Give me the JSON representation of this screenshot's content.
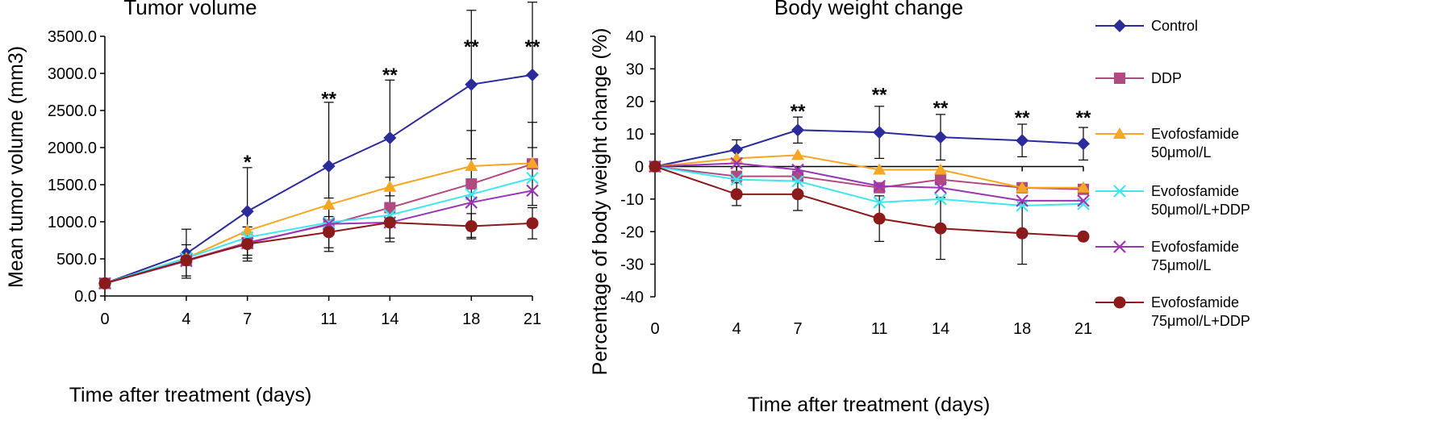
{
  "chart_data": [
    {
      "type": "line",
      "title": "Tumor volume",
      "xlabel": "Time after treatment  (days)",
      "ylabel": "Mean tumor volume (mm3)",
      "x": [
        0,
        4,
        7,
        11,
        14,
        18,
        21
      ],
      "xticks": [
        "0",
        "4",
        "7",
        "11",
        "14",
        "18",
        "21"
      ],
      "xlim": [
        0,
        21
      ],
      "ylim": [
        0,
        3500
      ],
      "yticks": [
        "0.0",
        "500.0",
        "1000.0",
        "1500.0",
        "2000.0",
        "2500.0",
        "3000.0",
        "3500.0"
      ],
      "grid": false,
      "series": [
        {
          "name": "Control",
          "values": [
            170,
            570,
            1140,
            1750,
            2130,
            2850,
            2980
          ],
          "err": [
            0,
            330,
            590,
            860,
            780,
            1000,
            980
          ]
        },
        {
          "name": "DDP",
          "values": [
            170,
            480,
            720,
            960,
            1190,
            1510,
            1780
          ],
          "err": [
            0,
            0,
            210,
            360,
            410,
            720,
            560
          ]
        },
        {
          "name": "Evofosfamide 50μmol/L",
          "values": [
            170,
            510,
            880,
            1230,
            1470,
            1750,
            1790
          ],
          "err": [
            0,
            0,
            0,
            0,
            0,
            0,
            0
          ]
        },
        {
          "name": "Evofosfamide 50μmol/L+DDP",
          "values": [
            170,
            510,
            790,
            990,
            1090,
            1370,
            1590
          ],
          "err": [
            0,
            0,
            0,
            0,
            0,
            0,
            0
          ]
        },
        {
          "name": "Evofosfamide 75μmol/L",
          "values": [
            170,
            470,
            710,
            970,
            990,
            1260,
            1420
          ],
          "err": [
            0,
            0,
            0,
            0,
            0,
            0,
            0
          ]
        },
        {
          "name": "Evofosfamide 75μmol/L+DDP",
          "values": [
            170,
            480,
            700,
            860,
            990,
            940,
            980
          ],
          "err": [
            0,
            210,
            230,
            210,
            260,
            170,
            210
          ]
        }
      ],
      "significance": [
        {
          "x": 7,
          "label": "*",
          "y": 1850
        },
        {
          "x": 11,
          "label": "**",
          "y": 2700
        },
        {
          "x": 14,
          "label": "**",
          "y": 3020
        },
        {
          "x": 18,
          "label": "**",
          "y": 3400
        },
        {
          "x": 21,
          "label": "**",
          "y": 3400
        }
      ]
    },
    {
      "type": "line",
      "title": "Body weight change",
      "xlabel": "Time after treatment  (days)",
      "ylabel": "Percentage of body weight change (%)",
      "x": [
        0,
        4,
        7,
        11,
        14,
        18,
        21
      ],
      "xticks": [
        "0",
        "4",
        "7",
        "11",
        "14",
        "18",
        "21"
      ],
      "xlim": [
        0,
        21
      ],
      "ylim": [
        -40,
        40
      ],
      "yticks": [
        "-40",
        "-30",
        "-20",
        "-10",
        "0",
        "10",
        "20",
        "30",
        "40"
      ],
      "grid": false,
      "series": [
        {
          "name": "Control",
          "values": [
            0,
            5.2,
            11.2,
            10.5,
            9.0,
            8.0,
            7.0
          ],
          "err": [
            0,
            3,
            4,
            8,
            7,
            5,
            5
          ]
        },
        {
          "name": "DDP",
          "values": [
            0,
            -3.0,
            -3.0,
            -6.5,
            -4.0,
            -6.5,
            -7.0
          ],
          "err": [
            0,
            0,
            0,
            0,
            0,
            0,
            0
          ]
        },
        {
          "name": "Evofosfamide 50μmol/L",
          "values": [
            0,
            2.5,
            3.5,
            -1.0,
            -1.0,
            -6.5,
            -6.5
          ],
          "err": [
            0,
            0,
            0,
            0,
            0,
            0,
            0
          ]
        },
        {
          "name": "Evofosfamide 50μmol/L+DDP",
          "values": [
            0,
            -4.0,
            -4.5,
            -11.0,
            -10.0,
            -12.0,
            -11.5
          ],
          "err": [
            0,
            0,
            0,
            0,
            0,
            0,
            0
          ]
        },
        {
          "name": "Evofosfamide 75μmol/L",
          "values": [
            0,
            1.0,
            -1.0,
            -6.0,
            -6.5,
            -10.5,
            -10.5
          ],
          "err": [
            0,
            0,
            0,
            0,
            0,
            0,
            0
          ]
        },
        {
          "name": "Evofosfamide 75μmol/L+DDP",
          "values": [
            0,
            -8.5,
            -8.5,
            -16.0,
            -19.0,
            -20.5,
            -21.5
          ],
          "err": [
            0,
            3.5,
            5,
            7,
            9.5,
            9.5,
            0
          ]
        }
      ],
      "significance": [
        {
          "x": 7,
          "label": "**",
          "y": 18
        },
        {
          "x": 11,
          "label": "**",
          "y": 23
        },
        {
          "x": 14,
          "label": "**",
          "y": 19
        },
        {
          "x": 18,
          "label": "**",
          "y": 16
        },
        {
          "x": 21,
          "label": "**",
          "y": 16
        }
      ]
    }
  ],
  "legend": {
    "placement": "right",
    "items": [
      {
        "lines": [
          "Control"
        ],
        "color": "#2b2b99",
        "marker": "diamond"
      },
      {
        "lines": [
          "DDP"
        ],
        "color": "#b04b82",
        "marker": "square"
      },
      {
        "lines": [
          "Evofosfamide",
          "50μmol/L"
        ],
        "color": "#f5a623",
        "marker": "triangle"
      },
      {
        "lines": [
          "Evofosfamide",
          "50μmol/L+DDP"
        ],
        "color": "#3ee6ef",
        "marker": "x"
      },
      {
        "lines": [
          "Evofosfamide",
          "75μmol/L"
        ],
        "color": "#9b35b5",
        "marker": "x"
      },
      {
        "lines": [
          "Evofosfamide",
          "75μmol/L+DDP"
        ],
        "color": "#8b1a1a",
        "marker": "circle"
      }
    ]
  }
}
